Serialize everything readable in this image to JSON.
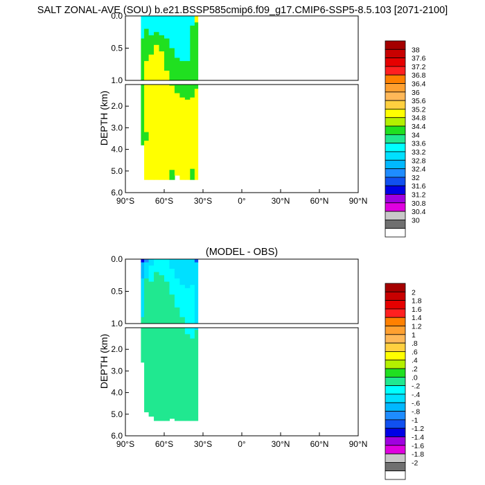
{
  "title": "SALT ZONAL-AVE (SOU) b.e21.BSSP585cmip6.f09_g17.CMIP6-SSP5-8.5.103 [2071-2100]",
  "chart_data": [
    {
      "type": "heatmap",
      "title": "",
      "xlabel": "",
      "ylabel": "DEPTH (km)",
      "x_ticks": [
        "90°S",
        "60°S",
        "30°S",
        "0°",
        "30°N",
        "60°N",
        "90°N"
      ],
      "x_range": [
        -90,
        90
      ],
      "y_upper_ticks": [
        "0.0",
        "0.5",
        "1.0"
      ],
      "y_lower_ticks": [
        "2.0",
        "3.0",
        "4.0",
        "5.0",
        "6.0"
      ],
      "y_range_km": [
        0,
        6
      ],
      "panel_break_km": 1.0,
      "data_lat_range": [
        -78,
        -34
      ],
      "colorbar_labels": [
        "38",
        "37.6",
        "37.2",
        "36.8",
        "36.4",
        "36",
        "35.6",
        "35.2",
        "34.8",
        "34.4",
        "34",
        "33.6",
        "33.2",
        "32.8",
        "32.4",
        "32",
        "31.6",
        "31.2",
        "30.8",
        "30.4",
        "30"
      ],
      "colorbar_colors": [
        "#a50000",
        "#c80000",
        "#e60000",
        "#ff2020",
        "#ff8000",
        "#ffa030",
        "#ffb858",
        "#ffd040",
        "#ffff00",
        "#b4f000",
        "#20e020",
        "#20e890",
        "#00ffff",
        "#00e0ff",
        "#00b8ff",
        "#1e8cff",
        "#1050f0",
        "#0000e6",
        "#a000e0",
        "#e000e0",
        "#c8c8c8",
        "#707070",
        "#ffffff"
      ],
      "field": {
        "columns": [
          {
            "lat": -77,
            "bottom": 3.8,
            "layers": [
              [
                0,
                0.35,
                "#00ffff"
              ],
              [
                0.35,
                3.8,
                "#20e020"
              ]
            ]
          },
          {
            "lat": -74,
            "bottom": 5.4,
            "layers": [
              [
                0,
                0.2,
                "#00ffff"
              ],
              [
                0.2,
                0.7,
                "#20e020"
              ],
              [
                0.7,
                3.2,
                "#ffff00"
              ],
              [
                3.2,
                3.6,
                "#20e020"
              ],
              [
                3.6,
                5.4,
                "#ffff00"
              ]
            ]
          },
          {
            "lat": -70,
            "bottom": 5.4,
            "layers": [
              [
                0,
                0.3,
                "#00ffff"
              ],
              [
                0.3,
                0.6,
                "#20e020"
              ],
              [
                0.6,
                5.4,
                "#ffff00"
              ]
            ]
          },
          {
            "lat": -66,
            "bottom": 5.4,
            "layers": [
              [
                0,
                0.25,
                "#00ffff"
              ],
              [
                0.25,
                0.45,
                "#20e020"
              ],
              [
                0.45,
                5.4,
                "#ffff00"
              ]
            ]
          },
          {
            "lat": -62,
            "bottom": 5.4,
            "layers": [
              [
                0,
                0.3,
                "#00ffff"
              ],
              [
                0.3,
                0.55,
                "#20e020"
              ],
              [
                0.55,
                5.4,
                "#ffff00"
              ]
            ]
          },
          {
            "lat": -58,
            "bottom": 5.4,
            "layers": [
              [
                0,
                0.35,
                "#00ffff"
              ],
              [
                0.35,
                0.85,
                "#20e020"
              ],
              [
                0.85,
                5.4,
                "#ffff00"
              ]
            ]
          },
          {
            "lat": -54,
            "bottom": 5.4,
            "layers": [
              [
                0,
                0.5,
                "#00ffff"
              ],
              [
                0.5,
                1.05,
                "#20e020"
              ],
              [
                1.05,
                4.95,
                "#ffff00"
              ],
              [
                4.95,
                5.4,
                "#20e020"
              ]
            ]
          },
          {
            "lat": -50,
            "bottom": 5.2,
            "layers": [
              [
                0,
                0.65,
                "#00ffff"
              ],
              [
                0.65,
                1.4,
                "#20e020"
              ],
              [
                1.4,
                5.2,
                "#ffff00"
              ]
            ]
          },
          {
            "lat": -46,
            "bottom": 5.4,
            "layers": [
              [
                0,
                0.7,
                "#00ffff"
              ],
              [
                0.7,
                1.6,
                "#20e020"
              ],
              [
                1.6,
                5.4,
                "#ffff00"
              ]
            ]
          },
          {
            "lat": -42,
            "bottom": 5.4,
            "layers": [
              [
                0,
                0.7,
                "#00ffff"
              ],
              [
                0.7,
                1.7,
                "#20e020"
              ],
              [
                1.7,
                5.4,
                "#ffff00"
              ]
            ]
          },
          {
            "lat": -38,
            "bottom": 5.4,
            "layers": [
              [
                0,
                0.15,
                "#00ffff"
              ],
              [
                0.15,
                1.6,
                "#20e020"
              ],
              [
                1.6,
                4.9,
                "#ffff00"
              ],
              [
                4.9,
                5.4,
                "#20e020"
              ]
            ]
          },
          {
            "lat": -35,
            "bottom": 5.4,
            "layers": [
              [
                0,
                0.1,
                "#ffff00"
              ],
              [
                0.1,
                1.2,
                "#20e020"
              ],
              [
                1.2,
                5.4,
                "#ffff00"
              ]
            ]
          }
        ]
      }
    },
    {
      "type": "heatmap",
      "title": "(MODEL - OBS)",
      "xlabel": "",
      "ylabel": "DEPTH (km)",
      "x_ticks": [
        "90°S",
        "60°S",
        "30°S",
        "0°",
        "30°N",
        "60°N",
        "90°N"
      ],
      "x_range": [
        -90,
        90
      ],
      "y_upper_ticks": [
        "0.0",
        "0.5",
        "1.0"
      ],
      "y_lower_ticks": [
        "2.0",
        "3.0",
        "4.0",
        "5.0",
        "6.0"
      ],
      "y_range_km": [
        0,
        6
      ],
      "panel_break_km": 1.0,
      "data_lat_range": [
        -78,
        -34
      ],
      "colorbar_labels": [
        "2",
        "1.8",
        "1.6",
        "1.4",
        "1.2",
        "1",
        ".8",
        ".6",
        ".4",
        ".2",
        ".0",
        "-.2",
        "-.4",
        "-.6",
        "-.8",
        "-1",
        "-1.2",
        "-1.4",
        "-1.6",
        "-1.8",
        "-2"
      ],
      "colorbar_colors": [
        "#a50000",
        "#c80000",
        "#e60000",
        "#ff2020",
        "#ff8000",
        "#ffa030",
        "#ffb858",
        "#ffd040",
        "#ffff00",
        "#b4f000",
        "#20e020",
        "#20e890",
        "#00ffff",
        "#00e0ff",
        "#00b8ff",
        "#1e8cff",
        "#1050f0",
        "#0000e6",
        "#a000e0",
        "#e000e0",
        "#c8c8c8",
        "#707070",
        "#ffffff"
      ],
      "field": {
        "columns": [
          {
            "lat": -77,
            "bottom": 2.6,
            "layers": [
              [
                0,
                0.05,
                "#0000e6"
              ],
              [
                0.05,
                0.3,
                "#00b8ff"
              ],
              [
                0.3,
                0.9,
                "#00e0ff"
              ],
              [
                0.9,
                2.6,
                "#20e890"
              ]
            ]
          },
          {
            "lat": -74,
            "bottom": 4.9,
            "layers": [
              [
                0,
                0.05,
                "#1e8cff"
              ],
              [
                0.05,
                0.3,
                "#00e0ff"
              ],
              [
                0.3,
                4.9,
                "#20e890"
              ]
            ]
          },
          {
            "lat": -70,
            "bottom": 5.1,
            "layers": [
              [
                0,
                0.1,
                "#00e0ff"
              ],
              [
                0.1,
                0.35,
                "#00ffff"
              ],
              [
                0.35,
                5.1,
                "#20e890"
              ]
            ]
          },
          {
            "lat": -66,
            "bottom": 5.3,
            "layers": [
              [
                0,
                0.2,
                "#00ffff"
              ],
              [
                0.2,
                5.3,
                "#20e890"
              ]
            ]
          },
          {
            "lat": -62,
            "bottom": 5.3,
            "layers": [
              [
                0,
                0.25,
                "#00ffff"
              ],
              [
                0.25,
                5.3,
                "#20e890"
              ]
            ]
          },
          {
            "lat": -58,
            "bottom": 5.3,
            "layers": [
              [
                0,
                0.35,
                "#00ffff"
              ],
              [
                0.35,
                5.3,
                "#20e890"
              ]
            ]
          },
          {
            "lat": -54,
            "bottom": 5.2,
            "layers": [
              [
                0,
                0.15,
                "#00e0ff"
              ],
              [
                0.15,
                0.55,
                "#00ffff"
              ],
              [
                0.55,
                5.2,
                "#20e890"
              ]
            ]
          },
          {
            "lat": -50,
            "bottom": 5.3,
            "layers": [
              [
                0,
                0.3,
                "#00e0ff"
              ],
              [
                0.3,
                0.75,
                "#00ffff"
              ],
              [
                0.75,
                5.3,
                "#20e890"
              ]
            ]
          },
          {
            "lat": -46,
            "bottom": 5.3,
            "layers": [
              [
                0,
                0.4,
                "#00e0ff"
              ],
              [
                0.4,
                0.9,
                "#00ffff"
              ],
              [
                0.9,
                5.3,
                "#20e890"
              ]
            ]
          },
          {
            "lat": -42,
            "bottom": 5.3,
            "layers": [
              [
                0,
                0.45,
                "#00e0ff"
              ],
              [
                0.45,
                1.3,
                "#00ffff"
              ],
              [
                1.3,
                5.3,
                "#20e890"
              ]
            ]
          },
          {
            "lat": -38,
            "bottom": 5.3,
            "layers": [
              [
                0,
                0.4,
                "#00e0ff"
              ],
              [
                0.4,
                1.5,
                "#00ffff"
              ],
              [
                1.5,
                5.3,
                "#20e890"
              ]
            ]
          },
          {
            "lat": -35,
            "bottom": 5.3,
            "layers": [
              [
                0,
                0.05,
                "#1050f0"
              ],
              [
                0.05,
                1.1,
                "#00e0ff"
              ],
              [
                1.1,
                5.3,
                "#20e890"
              ]
            ]
          }
        ]
      }
    }
  ]
}
